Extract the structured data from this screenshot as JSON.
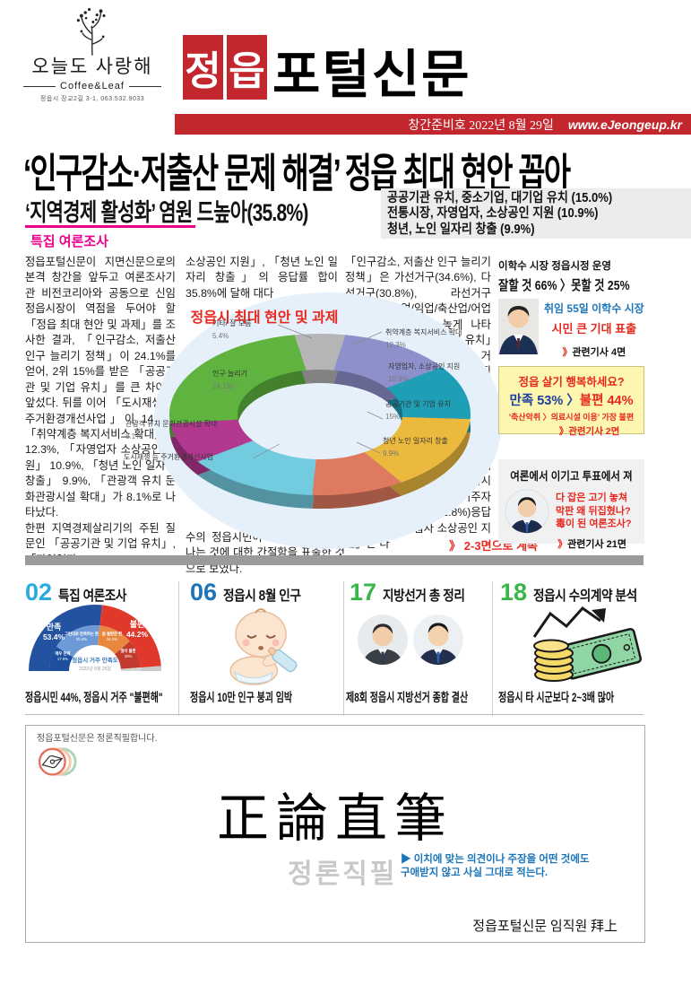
{
  "masthead": {
    "logo": {
      "name": "오늘도 사랑해",
      "brand": "Coffee&Leaf",
      "address": "정읍시 장교2길 3-1,  063.532.9033"
    },
    "title_box1": "정",
    "title_box2": "읍",
    "title_rest": "포털신문",
    "dateline": "창간준비호  2022년 8월 29일",
    "website": "www.eJeongeup.kr"
  },
  "headline": "‘인구감소·저출산 문제 해결’ 정읍 최대 현안 꼽아",
  "subhead": {
    "left": "‘지역경제 활성화’ 염원 드높아(35.8%)",
    "right_line1": "공공기관 유치, 중소기업, 대기업 유치 (15.0%)",
    "right_line2": "전통시장, 자영업자, 소상공인 지원 (10.9%)",
    "right_line3": "청년, 노인 일자리 창출 (9.9%)"
  },
  "section_label": "특집 여론조사",
  "article": {
    "col1": "정읍포털신문이 지면신문으로의 본격 창간을 앞두고 여론조사기관 비전코리아와 공동으로 신임 정읍시장이 역점을 두어야 할 「정읍 최대 현안 및 과제」를 조사한 결과, 「인구감소, 저출산 인구 늘리기 정책」이 24.1%를 얻어, 2위 15%를 받은 「공공기관 및 기업 유치」를 큰 차이로 앞섰다. 뒤를 이어 「도시재생 등 주거환경개선사업」이 14.3%, 「취약계층 복지서비스 확대」가 12.3%, 「자영업자 소상공인 지원」 10.9%, 「청년 노인 일자리 창출」 9.9%, 「관광객 유치 문화관광시설 확대」가 8.1%로 나타났다.\n 한편 지역경제살리기의 주된 질문인 「공공기관 및 기업 유치」, 「자영업자",
    "col2_top": "소상공인 지원」, 「청년 노인 일자리 창출」의 응답률 합이 35.8%에 달해 대다",
    "col2_bottom": "수의 정읍시민이 지역경제가 살아나는 것에 대한 간절함을 표출한 것으로 보였다.",
    "col3": "「인구감소, 저출산 인구 늘리기 정책」은 가선거구(34.6%), 다선거구(30.8%), 라선거구(30.4%), 농업/임업/축산업/어업(30.3%)응답층에서 높게 나타났고, 「공공기관 및 기업 유치」는 정읍시 1년이상 5년미만 거주자(57.1%), 사무/관리/전문직 종사자(31.7%), 10년이상 20년 미만 거주자(29.8%) 응답층에서, 「도시재생 등 주거환경개선사업」은 만18-39세(31.1%), 판매/생산/노무/서비스(30%), 바선거구(26.9%)에서, 「취약계층 복지서비스 확대」는 정읍시 5년이상 10년 미만 거주자(41.5%), 마선거구(21.8%)응답층에서, 「자영업자 소상공인 지원」은 다",
    "continue_note": "》 2-3면으로 계속"
  },
  "chart_data": [
    {
      "type": "pie",
      "variant": "donut-3d",
      "title": "정읍시 최대 현안 및 과제",
      "categories": [
        "기타/ 잘 모름",
        "취약계층 복지서비스 확대",
        "자영업자, 소상공인 지원",
        "공공기관 및 기업 유치",
        "청년 노인 일자리 창출",
        "도시재생 등 주거환경개선사업",
        "관광객 유치 문화관광시설 확대",
        "인구 늘리기"
      ],
      "values": [
        5.4,
        12.3,
        10.9,
        15,
        9.9,
        14.3,
        8.1,
        24.1
      ],
      "colors": [
        "#b5b5b5",
        "#8e90cc",
        "#1f9fb5",
        "#eab93d",
        "#de7a60",
        "#72cbdf",
        "#b2388f",
        "#5fb33e"
      ],
      "labels_left": [
        {
          "name": "기타/ 잘 모름",
          "value": "5.4%"
        },
        {
          "name": "인구 늘리기",
          "value": "24.1%"
        },
        {
          "name": "관광객 유치 문화관광시설 확대",
          "value": "8.1%"
        },
        {
          "name": "도시재생 등 주거환경개선사업",
          "value": ""
        }
      ],
      "labels_right": [
        {
          "name": "취약계층 복지서비스 확대",
          "value": "12.3%"
        },
        {
          "name": "자영업자, 소상공인 지원",
          "value": "10.9%"
        },
        {
          "name": "공공기관 및 기업 유치",
          "value": "15%"
        },
        {
          "name": "청년 노인 일자리 창출",
          "value": "9.9%"
        }
      ]
    },
    {
      "type": "pie",
      "variant": "half-donut",
      "title": "정읍시 거주 만족도",
      "subtitle": "2022년 8월 25일",
      "outer": [
        {
          "label": "만족",
          "value": 53.4,
          "color": "#2353a0"
        },
        {
          "label": "불편",
          "value": 44.2,
          "color": "#e0392c"
        },
        {
          "label": "",
          "value": 2.4,
          "color": "#c9c9c9"
        }
      ],
      "inner": [
        {
          "label": "매우 만족",
          "value": 17.9,
          "color": "#1d4f9e"
        },
        {
          "label": "그런대로 만족하는 편",
          "value": 35.4,
          "color": "#6d9ad6"
        },
        {
          "label": "좀 불편한 편",
          "value": 24.2,
          "color": "#e8883f"
        },
        {
          "label": "많이 불편",
          "value": 20,
          "color": "#c23b2e"
        },
        {
          "label": "",
          "value": 2.5,
          "color": "#d5d5d5"
        }
      ]
    }
  ],
  "sidebar": {
    "box1": {
      "title": "이학수 시장 정읍시정 운영",
      "headline": "잘할 것 66% 〉못할 것 25%",
      "line_blue": "취임 55일 이학수 시장",
      "line_red": "시민 큰 기대 표출",
      "related_mark": "》",
      "related": "관련기사 4면"
    },
    "box2": {
      "title": "정읍 살기 행복하세요?",
      "headline_blue": "만족 53% 〉",
      "headline_red": "불편 44%",
      "sub": "'축산악취 〉의료시설 이용' 가장 불편",
      "related": "》관련기사 2면"
    },
    "box3": {
      "title": "여론에서 이기고 투표에서 져",
      "line1": "다 잡은 고기 놓쳐",
      "line2": "막판 왜 뒤집혔나?",
      "line3": "毒이 된 여론조사?",
      "related_mark": "》",
      "related": "관련기사 21면"
    }
  },
  "bottom_nav": {
    "items": [
      {
        "num": "02",
        "num_color": "#29abe2",
        "title": "특집 여론조사",
        "caption": "정읍시민 44%, 정읍시 거주 \"불편해\""
      },
      {
        "num": "06",
        "num_color": "#1b75bb",
        "title": "정읍시 8월 인구",
        "caption": "정읍시 10만 인구 붕괴 임박"
      },
      {
        "num": "17",
        "num_color": "#39b54a",
        "title": "지방선거 총 정리",
        "caption": "제8회 정읍시 지방선거 종합 결산"
      },
      {
        "num": "18",
        "num_color": "#39b54a",
        "title": "정읍시 수의계약 분석",
        "caption": "정읍시 타 시군보다 2~3배 많아"
      }
    ]
  },
  "footer_box": {
    "tagline": "정읍포털신문은 정론직필합니다.",
    "calligraphy": "正論直筆",
    "subtitle": "정론직필",
    "desc_line1": "▶ 이치에 맞는 의견이나 주장을 어떤 것에도",
    "desc_line2": "구애받지 않고 사실 그대로 적는다.",
    "signoff": "정읍포털신문 임직원 拜上"
  }
}
